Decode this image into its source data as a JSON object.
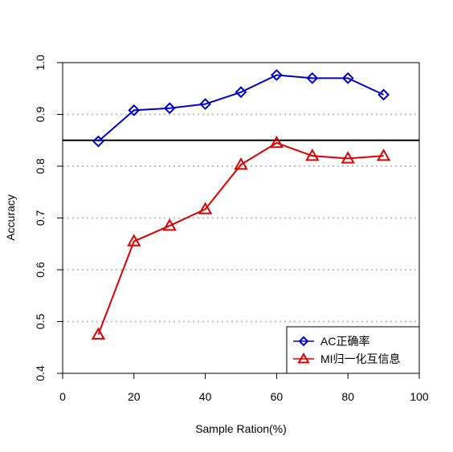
{
  "chart_data": {
    "type": "line",
    "title": "",
    "xlabel": "Sample Ration(%)",
    "ylabel": "Accuracy",
    "xlim": [
      0,
      100
    ],
    "ylim": [
      0.4,
      1.0
    ],
    "x_ticks": [
      "0",
      "20",
      "40",
      "60",
      "80",
      "100"
    ],
    "y_ticks": [
      "0.4",
      "0.5",
      "0.6",
      "0.7",
      "0.8",
      "0.9",
      "1.0"
    ],
    "grid": "horizontal dotted gray",
    "x": [
      10,
      20,
      30,
      40,
      50,
      60,
      70,
      80,
      90
    ],
    "series": [
      {
        "name": "AC正确率",
        "color": "#0000CD",
        "marker": "diamond",
        "values": [
          0.848,
          0.908,
          0.912,
          0.92,
          0.943,
          0.976,
          0.97,
          0.97,
          0.938
        ]
      },
      {
        "name": "MI归一化互信息",
        "color": "#DD0000",
        "marker": "triangle",
        "values": [
          0.475,
          0.655,
          0.685,
          0.717,
          0.803,
          0.845,
          0.82,
          0.815,
          0.82
        ]
      }
    ],
    "reference_line": {
      "y": 0.85,
      "color": "#000000"
    },
    "legend_position": "bottom-right"
  }
}
